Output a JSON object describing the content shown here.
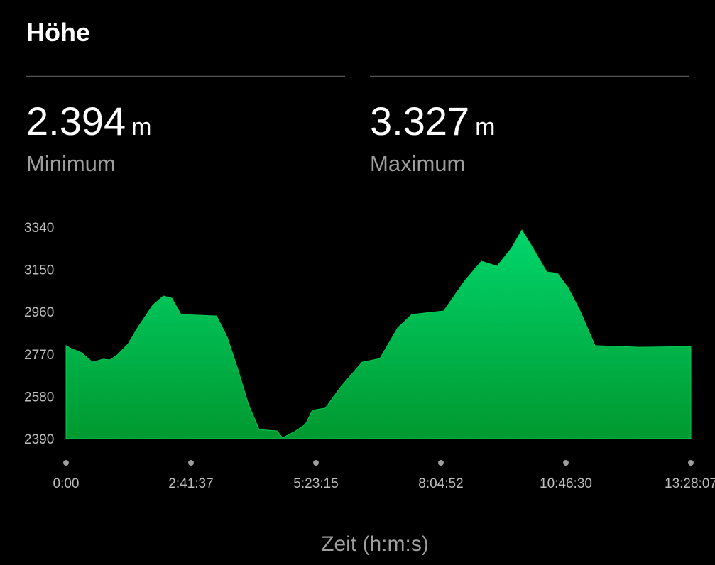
{
  "title": "Höhe",
  "stats": [
    {
      "value": "2.394",
      "unit": "m",
      "label": "Minimum"
    },
    {
      "value": "3.327",
      "unit": "m",
      "label": "Maximum"
    }
  ],
  "chart_data": {
    "type": "area",
    "x_label": "Zeit (h:m:s)",
    "color": "#00c853",
    "x": [
      0,
      386,
      1212,
      2039,
      2865,
      3416,
      3967,
      4793,
      5620,
      6722,
      7548,
      8210,
      8926,
      11681,
      12507,
      13334,
      14160,
      14987,
      16364,
      16805,
      17742,
      18568,
      19119,
      20111,
      21323,
      22976,
      24354,
      25731,
      26833,
      29313,
      30966,
      32233,
      33445,
      34547,
      35374,
      36090,
      37302,
      38128,
      38955,
      39947,
      41049,
      44465,
      48487
    ],
    "values": [
      2808,
      2795,
      2776,
      2734,
      2747,
      2744,
      2766,
      2814,
      2894,
      2989,
      3031,
      3021,
      2948,
      2941,
      2846,
      2702,
      2543,
      2431,
      2425,
      2394,
      2422,
      2454,
      2518,
      2527,
      2623,
      2734,
      2750,
      2887,
      2948,
      2964,
      3101,
      3187,
      3165,
      3244,
      3327,
      3260,
      3139,
      3133,
      3069,
      2957,
      2808,
      2801,
      2804
    ],
    "xlim": [
      0,
      48487
    ],
    "xticks": [
      {
        "value": 0,
        "label": "0:00"
      },
      {
        "value": 9697,
        "label": "2:41:37"
      },
      {
        "value": 19395,
        "label": "5:23:15"
      },
      {
        "value": 29092,
        "label": "8:04:52"
      },
      {
        "value": 38790,
        "label": "10:46:30"
      },
      {
        "value": 48487,
        "label": "13:28:07"
      }
    ],
    "ylim": [
      2390,
      3340
    ],
    "yticks": [
      2390,
      2580,
      2770,
      2960,
      3150,
      3340
    ]
  }
}
